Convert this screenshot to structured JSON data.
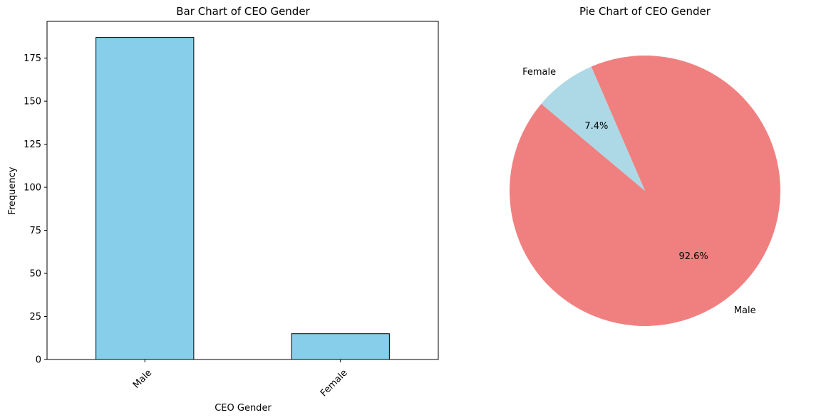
{
  "chart_data": [
    {
      "type": "bar",
      "title": "Bar Chart of CEO Gender",
      "xlabel": "CEO Gender",
      "ylabel": "Frequency",
      "categories": [
        "Male",
        "Female"
      ],
      "values": [
        187,
        15
      ],
      "ylim": [
        0,
        196.35
      ],
      "yticks": [
        0,
        25,
        50,
        75,
        100,
        125,
        150,
        175
      ],
      "bar_color": "#87ceeb",
      "edge_color": "#000000",
      "grid": false
    },
    {
      "type": "pie",
      "title": "Pie Chart of CEO Gender",
      "labels": [
        "Male",
        "Female"
      ],
      "values": [
        92.6,
        7.4
      ],
      "percent_labels": [
        "92.6%",
        "7.4%"
      ],
      "colors": [
        "#f08080",
        "#add8e6"
      ],
      "start_angle_deg": 140
    }
  ]
}
